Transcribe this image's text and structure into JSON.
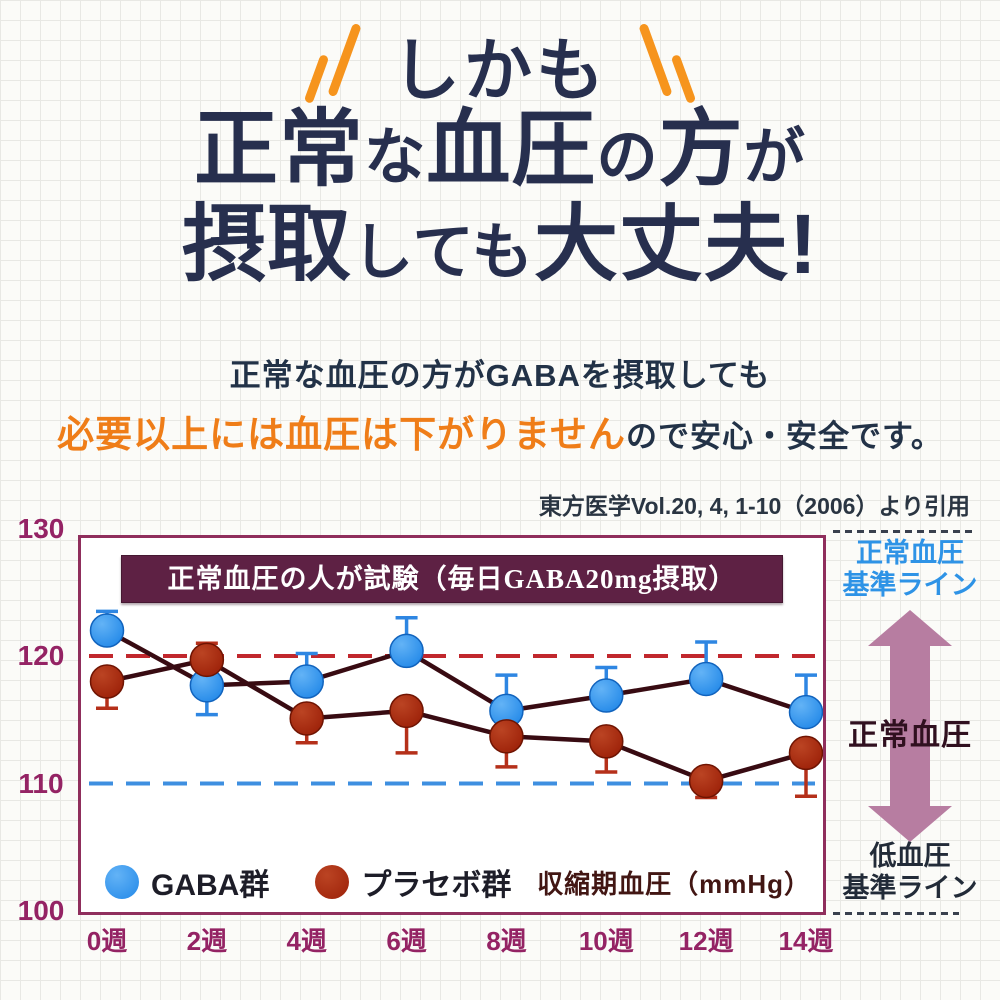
{
  "header": {
    "kicker": "しかも",
    "accent_color": "#f6941d",
    "text_color": "#272f4e",
    "title_lines": [
      {
        "segments": [
          {
            "text": "正常",
            "small": false
          },
          {
            "text": "な",
            "small": true
          },
          {
            "text": "血圧",
            "small": false
          },
          {
            "text": "の",
            "small": true
          },
          {
            "text": "方",
            "small": false
          },
          {
            "text": "が",
            "small": true
          }
        ]
      },
      {
        "segments": [
          {
            "text": "摂取",
            "small": false
          },
          {
            "text": "しても",
            "small": true
          },
          {
            "text": "大丈夫!",
            "small": false
          }
        ]
      }
    ]
  },
  "lead": {
    "line1": "正常な血圧の方がGABAを摂取しても",
    "line2_highlight": "必要以上には血圧は下がりません",
    "line2_rest": "ので安心・安全です。",
    "highlight_color": "#ef7d18"
  },
  "citation": "東方医学Vol.20, 4, 1-10（2006）より引用",
  "chart_data": {
    "type": "line",
    "title": "正常血圧の人が試験（毎日GABA20mg摂取）",
    "unit_label": "収縮期血圧（mmHg）",
    "categories": [
      "0週",
      "2週",
      "4週",
      "6週",
      "8週",
      "10週",
      "12週",
      "14週"
    ],
    "series": [
      {
        "name": "GABA群",
        "color": "#2288e8",
        "color_light": "#63b3f6",
        "color_dark": "#1163bd",
        "error_color": "#2e86e2",
        "values": [
          122.0,
          117.7,
          118.0,
          120.4,
          115.7,
          116.9,
          118.2,
          115.6
        ],
        "errors": [
          1.5,
          2.3,
          2.2,
          2.6,
          2.8,
          2.2,
          2.9,
          2.9
        ],
        "error_dirs": [
          "up",
          "down",
          "up",
          "up",
          "up",
          "up",
          "up",
          "up"
        ]
      },
      {
        "name": "プラセボ群",
        "color": "#9c2008",
        "color_light": "#bb4423",
        "color_dark": "#6f1402",
        "error_color": "#b5301a",
        "values": [
          118.0,
          119.7,
          115.1,
          115.7,
          113.7,
          113.3,
          110.2,
          112.4
        ],
        "errors": [
          2.1,
          1.3,
          1.9,
          3.3,
          2.4,
          2.4,
          1.3,
          3.4
        ],
        "error_dirs": [
          "down",
          "up",
          "down",
          "down",
          "down",
          "down",
          "down",
          "down"
        ]
      }
    ],
    "line_color": "#380b12",
    "ylim": [
      100,
      130
    ],
    "yticks": [
      130,
      120,
      110,
      100
    ],
    "grid": false,
    "legend_position": "bottom-left-inside",
    "reference_lines": [
      {
        "value": 120,
        "color": "#c1272d",
        "meaning": "正常血圧基準ライン"
      },
      {
        "value": 110,
        "color": "#3e8fe0",
        "meaning": "低血圧基準ライン"
      }
    ],
    "axis_color": "#942364"
  },
  "sidebar": {
    "top_label_lines": [
      "正常血圧",
      "基準ライン"
    ],
    "top_label_color": "#2e93e6",
    "arrow_label": "正常血圧",
    "arrow_color": "#b77da1",
    "bottom_label_lines": [
      "低血圧",
      "基準ライン"
    ],
    "bottom_label_color": "#222b38"
  }
}
